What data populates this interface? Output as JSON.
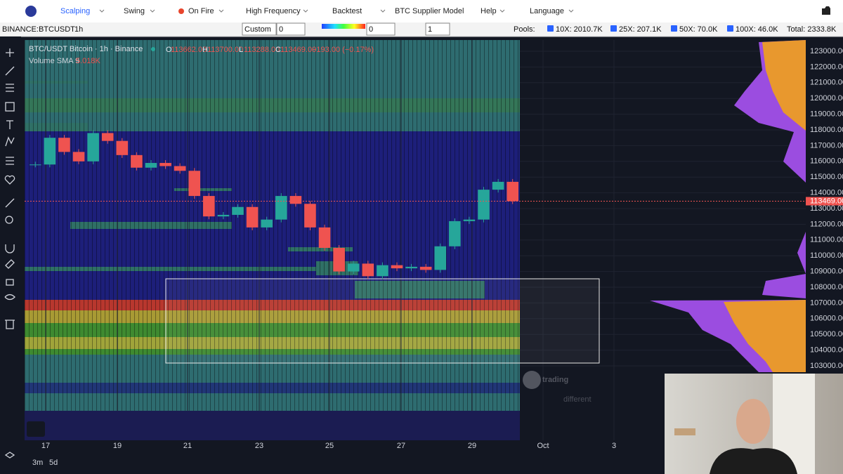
{
  "menu": {
    "items": [
      "Scalping",
      "Swing",
      "On Fire",
      "High Frequency",
      "Backtest",
      "BTC Supplier Model",
      "Help",
      "Language"
    ]
  },
  "toolbar": {
    "symbol": "BINANCE:BTCUSDT",
    "interval": "1h",
    "style": "Custom",
    "style_value": "0",
    "gradient_value": "0",
    "layers": "1",
    "pools_label": "Pools:",
    "pools": [
      "10X: 2010.7K",
      "25X: 207.1K",
      "50X: 70.0K",
      "100X: 46.0K"
    ],
    "total": "Total: 2333.8K"
  },
  "chart": {
    "title": "BTC/USDT Bitcoin · 1h · Binance",
    "ohlc": [
      {
        "label": "O",
        "value": "113662.00"
      },
      {
        "label": "H",
        "value": "113700.00"
      },
      {
        "label": "L",
        "value": "113288.00"
      },
      {
        "label": "C",
        "value": "113469.00"
      }
    ],
    "change": "−193.00 (−0.17%)",
    "volume_label": "Volume SMA 9",
    "volume_value": "5.018K",
    "price_ticks": [
      "123000.00",
      "122000.00",
      "121000.00",
      "120000.00",
      "119000.00",
      "118000.00",
      "117000.00",
      "116000.00",
      "115000.00",
      "114000.00",
      "113000.00",
      "112000.00",
      "111000.00",
      "110000.00",
      "109000.00",
      "108000.00",
      "107000.00",
      "106000.00",
      "105000.00",
      "104000.00",
      "103000.00"
    ],
    "last_price": "113469.00",
    "dates": [
      "17",
      "19",
      "21",
      "23",
      "25",
      "27",
      "29",
      "Oct",
      "3"
    ],
    "closes": [
      115800,
      117500,
      116600,
      116000,
      117800,
      117300,
      116400,
      115600,
      115900,
      115700,
      115400,
      113800,
      112500,
      112600,
      113100,
      111800,
      112300,
      113800,
      113300,
      111800,
      110500,
      109000,
      109500,
      108700,
      109400,
      109200,
      109300,
      109100,
      110600,
      112200,
      112300,
      114200,
      114700,
      113469
    ],
    "watermark": [
      "trading",
      "different"
    ]
  },
  "bottom": {
    "ranges": [
      "3m",
      "5d"
    ]
  }
}
